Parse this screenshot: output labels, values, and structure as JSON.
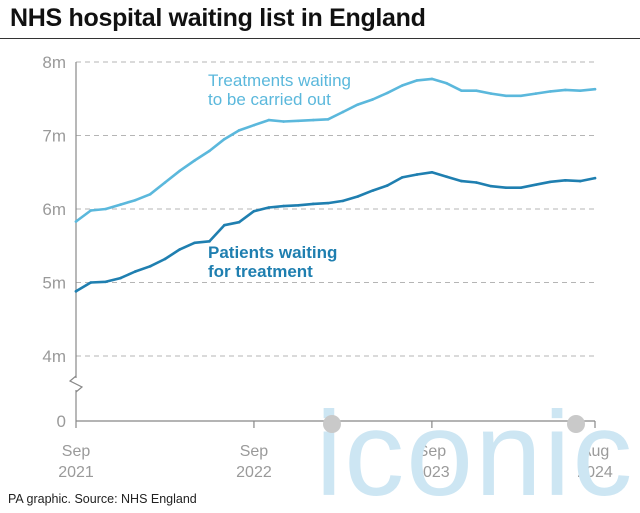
{
  "header": {
    "title": "NHS hospital waiting list in England"
  },
  "footer": {
    "source": "PA graphic. Source: NHS England"
  },
  "watermark": {
    "text": "iconic"
  },
  "chart_data": {
    "type": "line",
    "title": "NHS hospital waiting list in England",
    "y_axis": {
      "ticks": [
        0,
        4,
        5,
        6,
        7,
        8
      ],
      "tick_labels": [
        "0",
        "4m",
        "5m",
        "6m",
        "7m",
        "8m"
      ],
      "broken": true,
      "unit": "millions"
    },
    "x_axis": {
      "ticks": [
        {
          "label_top": "Sep",
          "label_bottom": "2021"
        },
        {
          "label_top": "Sep",
          "label_bottom": "2022"
        },
        {
          "label_top": "Sep",
          "label_bottom": "2023"
        },
        {
          "label_top": "Aug",
          "label_bottom": "2024"
        }
      ],
      "tick_indices": [
        0,
        12,
        24,
        35
      ]
    },
    "grid": true,
    "categories": [
      "2021-09",
      "2021-10",
      "2021-11",
      "2021-12",
      "2022-01",
      "2022-02",
      "2022-03",
      "2022-04",
      "2022-05",
      "2022-06",
      "2022-07",
      "2022-08",
      "2022-09",
      "2022-10",
      "2022-11",
      "2022-12",
      "2023-01",
      "2023-02",
      "2023-03",
      "2023-04",
      "2023-05",
      "2023-06",
      "2023-07",
      "2023-08",
      "2023-09",
      "2023-10",
      "2023-11",
      "2023-12",
      "2024-01",
      "2024-02",
      "2024-03",
      "2024-04",
      "2024-05",
      "2024-06",
      "2024-07",
      "2024-08"
    ],
    "series": [
      {
        "name": "Treatments waiting to be carried out",
        "label_lines": [
          "Treatments waiting",
          "to be carried out"
        ],
        "color": "#5bb8dc",
        "values": [
          5.83,
          5.98,
          6.0,
          6.06,
          6.12,
          6.2,
          6.36,
          6.52,
          6.66,
          6.79,
          6.95,
          7.07,
          7.14,
          7.21,
          7.19,
          7.2,
          7.21,
          7.22,
          7.32,
          7.42,
          7.49,
          7.58,
          7.68,
          7.75,
          7.77,
          7.71,
          7.61,
          7.61,
          7.57,
          7.54,
          7.54,
          7.57,
          7.6,
          7.62,
          7.61,
          7.63
        ]
      },
      {
        "name": "Patients waiting for treatment",
        "label_lines": [
          "Patients waiting",
          "for treatment"
        ],
        "color": "#1f7fb0",
        "values": [
          4.88,
          5.0,
          5.01,
          5.06,
          5.15,
          5.22,
          5.32,
          5.45,
          5.54,
          5.56,
          5.78,
          5.82,
          5.97,
          6.02,
          6.04,
          6.05,
          6.07,
          6.08,
          6.11,
          6.17,
          6.25,
          6.32,
          6.43,
          6.47,
          6.5,
          6.44,
          6.38,
          6.36,
          6.31,
          6.29,
          6.29,
          6.33,
          6.37,
          6.39,
          6.38,
          6.42
        ]
      }
    ]
  }
}
